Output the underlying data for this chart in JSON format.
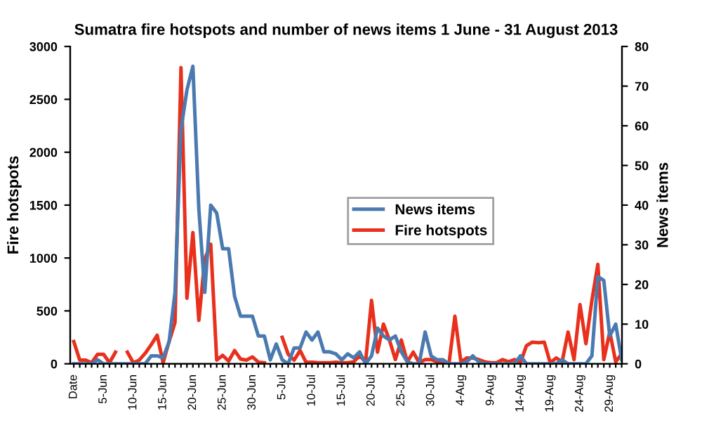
{
  "chart_data": {
    "type": "line",
    "title": "Sumatra fire hotspots and number of news items 1 June - 31 August 2013",
    "ylabel": "Fire hotspots",
    "y2label": "News items",
    "categories": [
      "Date",
      null,
      null,
      null,
      null,
      "5-Jun",
      null,
      null,
      null,
      null,
      "10-Jun",
      null,
      null,
      null,
      null,
      "15-Jun",
      null,
      null,
      null,
      null,
      "20-Jun",
      null,
      null,
      null,
      null,
      "25-Jun",
      null,
      null,
      null,
      null,
      "30-Jun",
      null,
      null,
      null,
      null,
      "5-Jul",
      null,
      null,
      null,
      null,
      "10-Jul",
      null,
      null,
      null,
      null,
      "15-Jul",
      null,
      null,
      null,
      null,
      "20-Jul",
      null,
      null,
      null,
      null,
      "25-Jul",
      null,
      null,
      null,
      null,
      "30-Jul",
      null,
      null,
      null,
      null,
      "4-Aug",
      null,
      null,
      null,
      null,
      "9-Aug",
      null,
      null,
      null,
      null,
      "14-Aug",
      null,
      null,
      null,
      null,
      "19-Aug",
      null,
      null,
      null,
      null,
      "24-Aug",
      null,
      null,
      null,
      null,
      "29-Aug",
      null,
      null
    ],
    "series": [
      {
        "name": "News items",
        "color": "#4a7ab0",
        "axis": "y2",
        "values": [
          0,
          0,
          0,
          0,
          1,
          0,
          0,
          0,
          0,
          0,
          0,
          0,
          0,
          2,
          2,
          1.5,
          5.5,
          18,
          59,
          69,
          75,
          39,
          18,
          40,
          38,
          29,
          29,
          17,
          12,
          12,
          12,
          7,
          7,
          1,
          5,
          1,
          0,
          4,
          4,
          8,
          6,
          8,
          3,
          3,
          2.5,
          1,
          2.5,
          1.5,
          3,
          0,
          2,
          9,
          7,
          6,
          7,
          3,
          0.5,
          0,
          0,
          8,
          2,
          1,
          1,
          0,
          0,
          0,
          0.5,
          2,
          0.5,
          0,
          0,
          0,
          0,
          0,
          0,
          2,
          0,
          0,
          0,
          0,
          0,
          0,
          1,
          0,
          0,
          0,
          0,
          2,
          22,
          21,
          7,
          10,
          1
        ]
      },
      {
        "name": "Fire hotspots",
        "color": "#e8301c",
        "values": [
          210,
          35,
          35,
          10,
          90,
          90,
          10,
          110,
          null,
          110,
          10,
          35,
          100,
          180,
          270,
          10,
          210,
          390,
          2800,
          620,
          1240,
          410,
          990,
          1130,
          35,
          80,
          25,
          125,
          45,
          35,
          65,
          15,
          10,
          null,
          null,
          250,
          90,
          35,
          125,
          15,
          15,
          10,
          10,
          10,
          15,
          10,
          10,
          19,
          75,
          19,
          600,
          110,
          375,
          225,
          40,
          225,
          19,
          110,
          10,
          40,
          40,
          19,
          0,
          0,
          450,
          19,
          55,
          55,
          40,
          19,
          10,
          10,
          40,
          19,
          40,
          10,
          170,
          205,
          200,
          205,
          10,
          55,
          19,
          300,
          40,
          560,
          190,
          600,
          940,
          40,
          300,
          19,
          95
        ]
      }
    ],
    "ylim": [
      0,
      3000
    ],
    "yticks": [
      0,
      500,
      1000,
      1500,
      2000,
      2500,
      3000
    ],
    "y2lim": [
      0,
      80
    ],
    "y2ticks": [
      0,
      10,
      20,
      30,
      40,
      50,
      60,
      70,
      80
    ],
    "legend": "right",
    "grid": false,
    "marker": "none",
    "line_style": "solid"
  }
}
